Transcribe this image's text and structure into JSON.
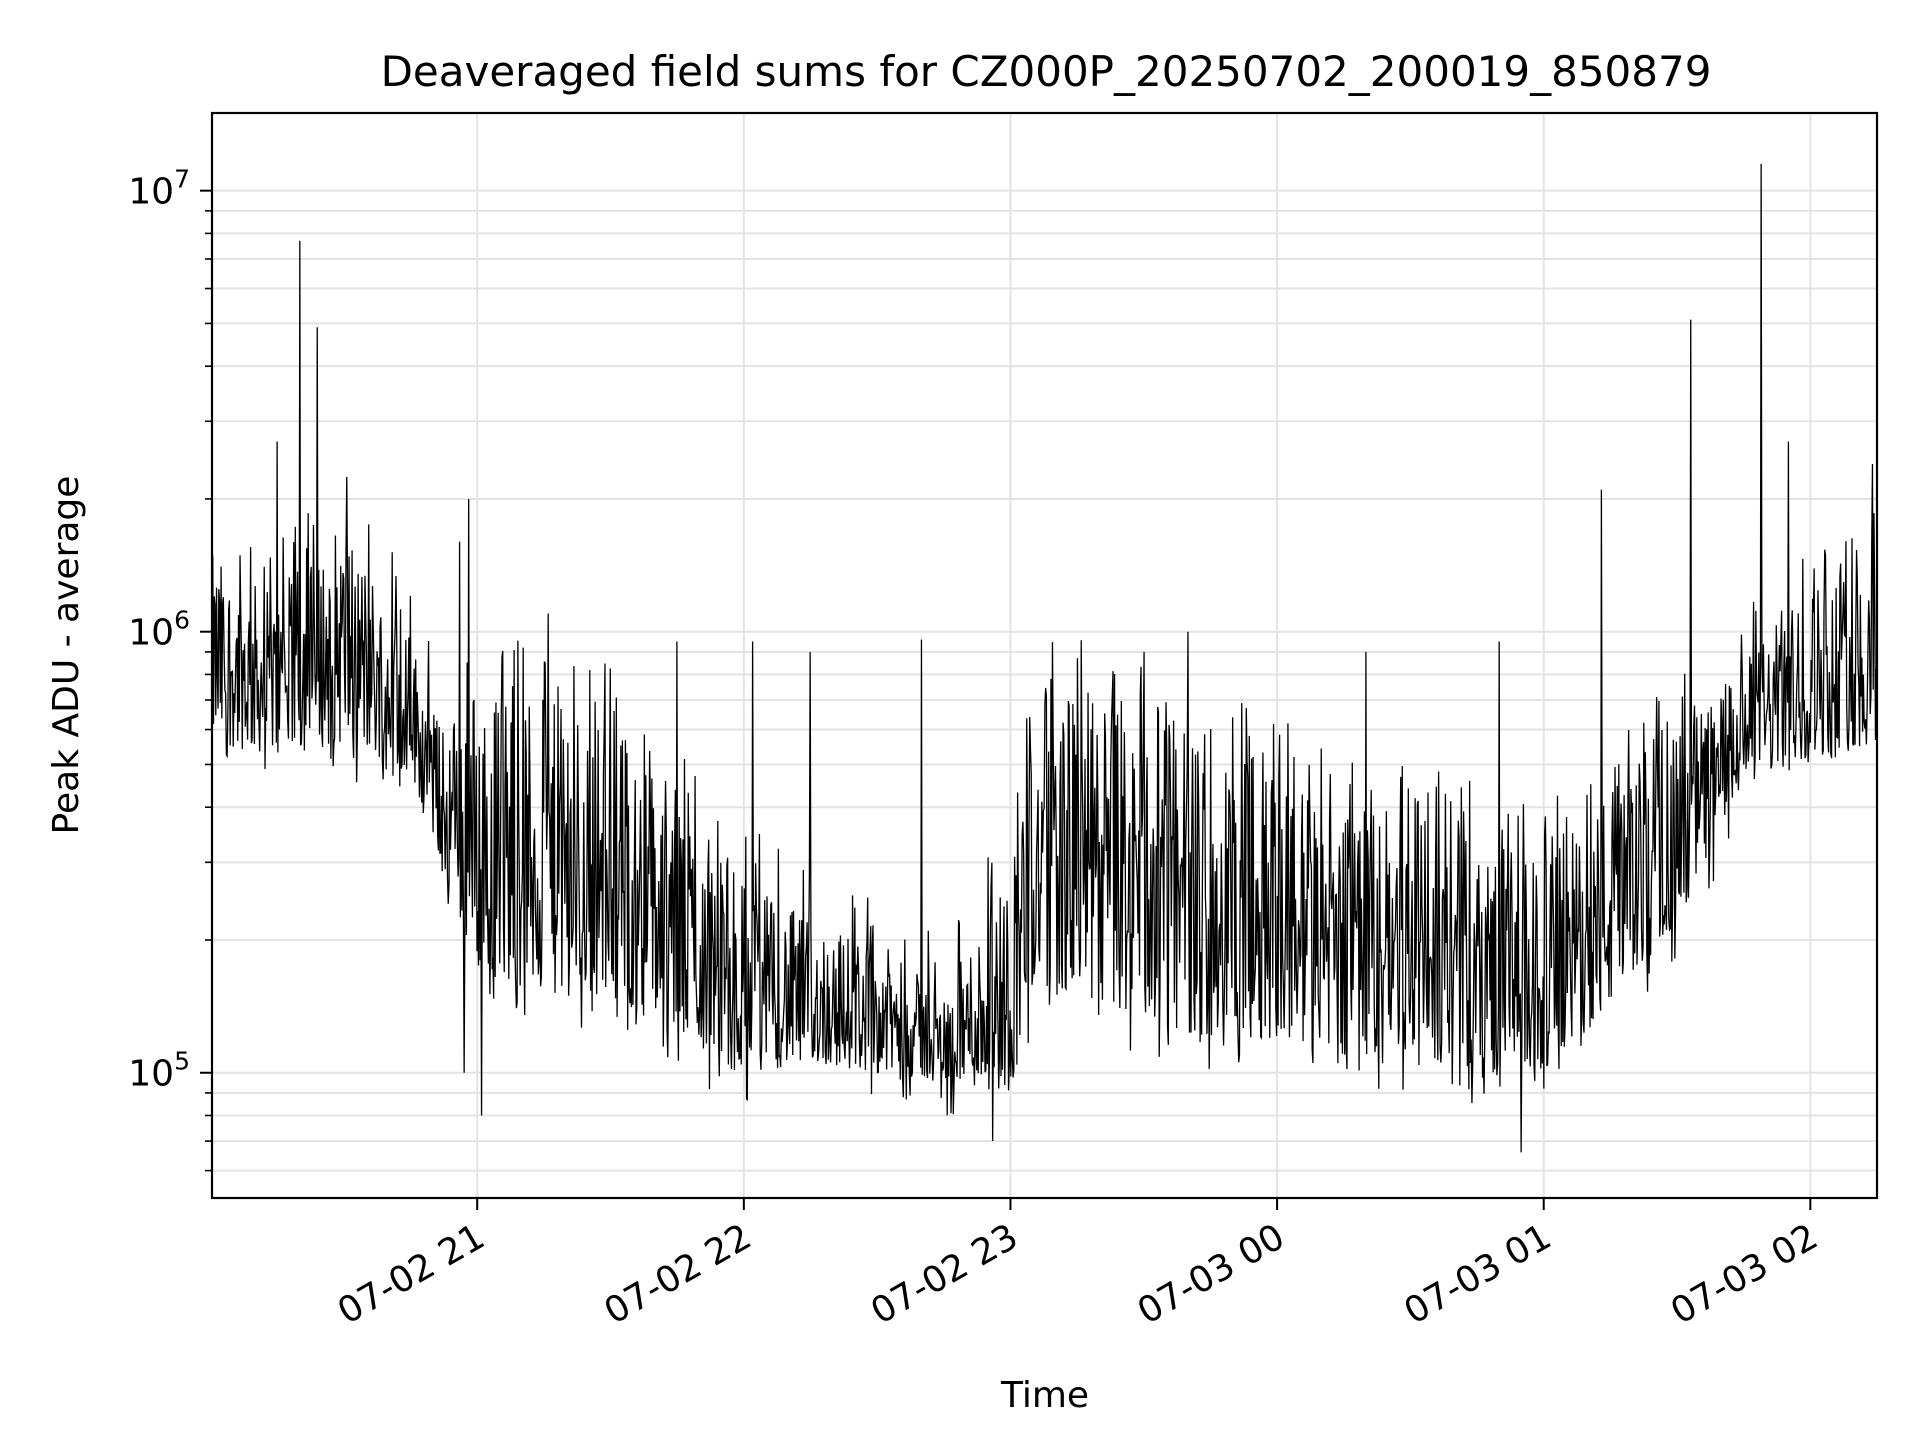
{
  "chart_data": {
    "type": "line",
    "title": "Deaveraged field sums for CZ000P_20250702_200019_850879",
    "xlabel": "Time",
    "ylabel": "Peak ADU - average",
    "yscale": "log",
    "ylim": [
      52000,
      15000000
    ],
    "xlim": [
      "2025-07-02T20:00:19",
      "2025-07-03T02:15:00"
    ],
    "x_ticks": [
      {
        "value": "2025-07-02T21:00",
        "label": "07-02 21"
      },
      {
        "value": "2025-07-02T22:00",
        "label": "07-02 22"
      },
      {
        "value": "2025-07-02T23:00",
        "label": "07-02 23"
      },
      {
        "value": "2025-07-03T00:00",
        "label": "07-03 00"
      },
      {
        "value": "2025-07-03T01:00",
        "label": "07-03 01"
      },
      {
        "value": "2025-07-03T02:00",
        "label": "07-03 02"
      }
    ],
    "y_ticks": [
      {
        "value": 100000,
        "base": "10",
        "exp": "5"
      },
      {
        "value": 1000000,
        "base": "10",
        "exp": "6"
      },
      {
        "value": 10000000,
        "base": "10",
        "exp": "7"
      }
    ],
    "grid": true,
    "line_color": "#000000",
    "series": [
      {
        "envelope": [
          {
            "t": "2025-07-02T20:00:19",
            "low": 560000,
            "high": 1500000
          },
          {
            "t": "2025-07-02T20:15:00",
            "low": 520000,
            "high": 1200000
          },
          {
            "t": "2025-07-02T20:30:00",
            "low": 560000,
            "high": 1800000
          },
          {
            "t": "2025-07-02T20:45:00",
            "low": 480000,
            "high": 1000000
          },
          {
            "t": "2025-07-02T20:52:00",
            "low": 300000,
            "high": 600000
          },
          {
            "t": "2025-07-02T21:00:00",
            "low": 170000,
            "high": 800000
          },
          {
            "t": "2025-07-02T21:15:00",
            "low": 150000,
            "high": 700000
          },
          {
            "t": "2025-07-02T21:30:00",
            "low": 150000,
            "high": 650000
          },
          {
            "t": "2025-07-02T21:45:00",
            "low": 120000,
            "high": 450000
          },
          {
            "t": "2025-07-02T22:00:00",
            "low": 100000,
            "high": 280000
          },
          {
            "t": "2025-07-02T22:15:00",
            "low": 105000,
            "high": 220000
          },
          {
            "t": "2025-07-02T22:30:00",
            "low": 100000,
            "high": 200000
          },
          {
            "t": "2025-07-02T22:45:00",
            "low": 95000,
            "high": 150000
          },
          {
            "t": "2025-07-02T23:00:00",
            "low": 90000,
            "high": 300000
          },
          {
            "t": "2025-07-02T23:05:00",
            "low": 150000,
            "high": 700000
          },
          {
            "t": "2025-07-02T23:15:00",
            "low": 150000,
            "high": 750000
          },
          {
            "t": "2025-07-02T23:30:00",
            "low": 130000,
            "high": 650000
          },
          {
            "t": "2025-07-02T23:45:00",
            "low": 120000,
            "high": 550000
          },
          {
            "t": "2025-07-03T00:00:00",
            "low": 120000,
            "high": 500000
          },
          {
            "t": "2025-07-03T00:15:00",
            "low": 110000,
            "high": 400000
          },
          {
            "t": "2025-07-03T00:30:00",
            "low": 110000,
            "high": 380000
          },
          {
            "t": "2025-07-03T00:45:00",
            "low": 100000,
            "high": 350000
          },
          {
            "t": "2025-07-03T01:00:00",
            "low": 100000,
            "high": 300000
          },
          {
            "t": "2025-07-03T01:15:00",
            "low": 140000,
            "high": 450000
          },
          {
            "t": "2025-07-03T01:30:00",
            "low": 220000,
            "high": 600000
          },
          {
            "t": "2025-07-03T01:45:00",
            "low": 450000,
            "high": 850000
          },
          {
            "t": "2025-07-03T02:00:00",
            "low": 520000,
            "high": 1300000
          },
          {
            "t": "2025-07-03T02:15:00",
            "low": 550000,
            "high": 1500000
          }
        ],
        "spikes": [
          {
            "t": "2025-07-02T20:20:00",
            "y": 7700000
          },
          {
            "t": "2025-07-02T20:24:00",
            "y": 4900000
          },
          {
            "t": "2025-07-02T20:15:00",
            "y": 2700000
          },
          {
            "t": "2025-07-02T20:56:00",
            "y": 1600000
          },
          {
            "t": "2025-07-02T20:57:00",
            "y": 100000
          },
          {
            "t": "2025-07-02T20:58:00",
            "y": 2000000
          },
          {
            "t": "2025-07-02T21:01:00",
            "y": 80000
          },
          {
            "t": "2025-07-02T21:16:00",
            "y": 1100000
          },
          {
            "t": "2025-07-02T21:45:00",
            "y": 950000
          },
          {
            "t": "2025-07-02T22:02:00",
            "y": 950000
          },
          {
            "t": "2025-07-02T22:15:00",
            "y": 900000
          },
          {
            "t": "2025-07-02T22:40:00",
            "y": 960000
          },
          {
            "t": "2025-07-02T22:56:00",
            "y": 70000
          },
          {
            "t": "2025-07-02T23:30:00",
            "y": 900000
          },
          {
            "t": "2025-07-02T23:40:00",
            "y": 1000000
          },
          {
            "t": "2025-07-03T00:20:00",
            "y": 900000
          },
          {
            "t": "2025-07-03T00:50:00",
            "y": 950000
          },
          {
            "t": "2025-07-03T00:55:00",
            "y": 66000
          },
          {
            "t": "2025-07-03T01:13:00",
            "y": 2100000
          },
          {
            "t": "2025-07-03T01:33:00",
            "y": 5100000
          },
          {
            "t": "2025-07-03T01:49:00",
            "y": 11500000
          },
          {
            "t": "2025-07-03T01:55:00",
            "y": 2700000
          },
          {
            "t": "2025-07-03T02:14:00",
            "y": 2400000
          }
        ]
      }
    ]
  }
}
